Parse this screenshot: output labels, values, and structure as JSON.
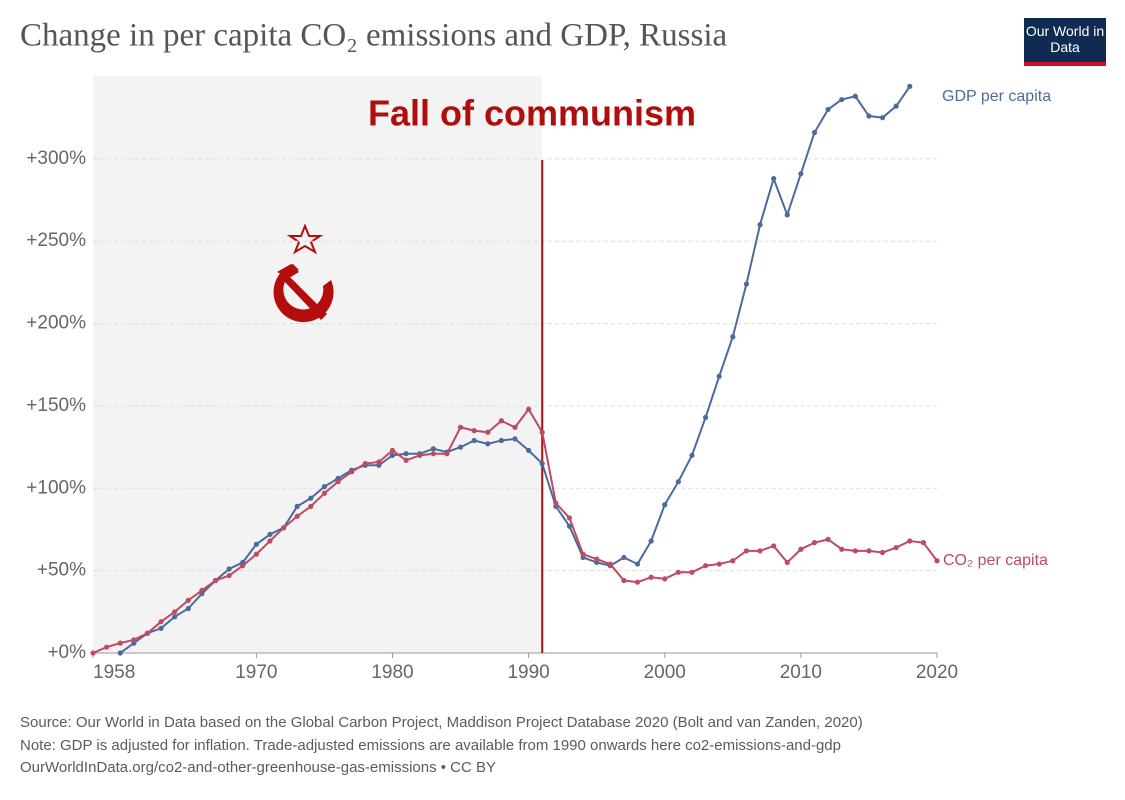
{
  "chart_data": {
    "type": "line",
    "title": "Change in per capita CO₂ emissions and GDP, Russia",
    "logo": "Our World in Data",
    "annotation": {
      "text": "Fall of communism",
      "x": 1991
    },
    "notes": [
      "Source: Our World in Data based on the Global Carbon Project, Maddison Project Database 2020 (Bolt and van Zanden, 2020)",
      "Note: GDP is adjusted for inflation. Trade-adjusted emissions are available from 1990 onwards here co2-emissions-and-gdp",
      "OurWorldInData.org/co2-and-other-greenhouse-gas-emissions • CC BY"
    ],
    "x": [
      1958,
      1959,
      1960,
      1961,
      1962,
      1963,
      1964,
      1965,
      1966,
      1967,
      1968,
      1969,
      1970,
      1971,
      1972,
      1973,
      1974,
      1975,
      1976,
      1977,
      1978,
      1979,
      1980,
      1981,
      1982,
      1983,
      1984,
      1985,
      1986,
      1987,
      1988,
      1989,
      1990,
      1991,
      1992,
      1993,
      1994,
      1995,
      1996,
      1997,
      1998,
      1999,
      2000,
      2001,
      2002,
      2003,
      2004,
      2005,
      2006,
      2007,
      2008,
      2009,
      2010,
      2011,
      2012,
      2013,
      2014,
      2015,
      2016,
      2017,
      2018,
      2019,
      2020
    ],
    "series": [
      {
        "name": "GDP per capita",
        "color": "#4c6a9c",
        "values": [
          null,
          null,
          0,
          6,
          12,
          15,
          22,
          27,
          36,
          44,
          51,
          55,
          66,
          72,
          76,
          89,
          94,
          101,
          106,
          111,
          114,
          114,
          120,
          121,
          121,
          124,
          122,
          125,
          129,
          127,
          129,
          130,
          123,
          115,
          89,
          77,
          58,
          55,
          53,
          58,
          54,
          68,
          90,
          104,
          120,
          143,
          168,
          192,
          224,
          260,
          288,
          266,
          291,
          316,
          330,
          336,
          338,
          326,
          325,
          332,
          344,
          null,
          null
        ]
      },
      {
        "name": "CO₂ per capita",
        "color": "#be4a63",
        "values": [
          0,
          3.6,
          6,
          8,
          12,
          19,
          25,
          32,
          38,
          44,
          47,
          53,
          60,
          68,
          76,
          83,
          89,
          97,
          104,
          110,
          115,
          116,
          123,
          117,
          120,
          121,
          121,
          137,
          135,
          134,
          141,
          137,
          148,
          134,
          91,
          82,
          60,
          57,
          54,
          44,
          43,
          46,
          45,
          49,
          49,
          53,
          54,
          56,
          62,
          62,
          65,
          55,
          63,
          67,
          69,
          63,
          62,
          62,
          61,
          64,
          68,
          67,
          56
        ]
      }
    ],
    "xlim": [
      1958,
      2020
    ],
    "xticks": [
      1958,
      1970,
      1980,
      1990,
      2000,
      2010,
      2020
    ],
    "ylim": [
      0,
      350
    ],
    "yticks": [
      {
        "value": 0,
        "label": "+0%"
      },
      {
        "value": 50,
        "label": "+50%"
      },
      {
        "value": 100,
        "label": "+100%"
      },
      {
        "value": 150,
        "label": "+150%"
      },
      {
        "value": 200,
        "label": "+200%"
      },
      {
        "value": 250,
        "label": "+250%"
      },
      {
        "value": 300,
        "label": "+300%"
      }
    ],
    "grid": true
  }
}
